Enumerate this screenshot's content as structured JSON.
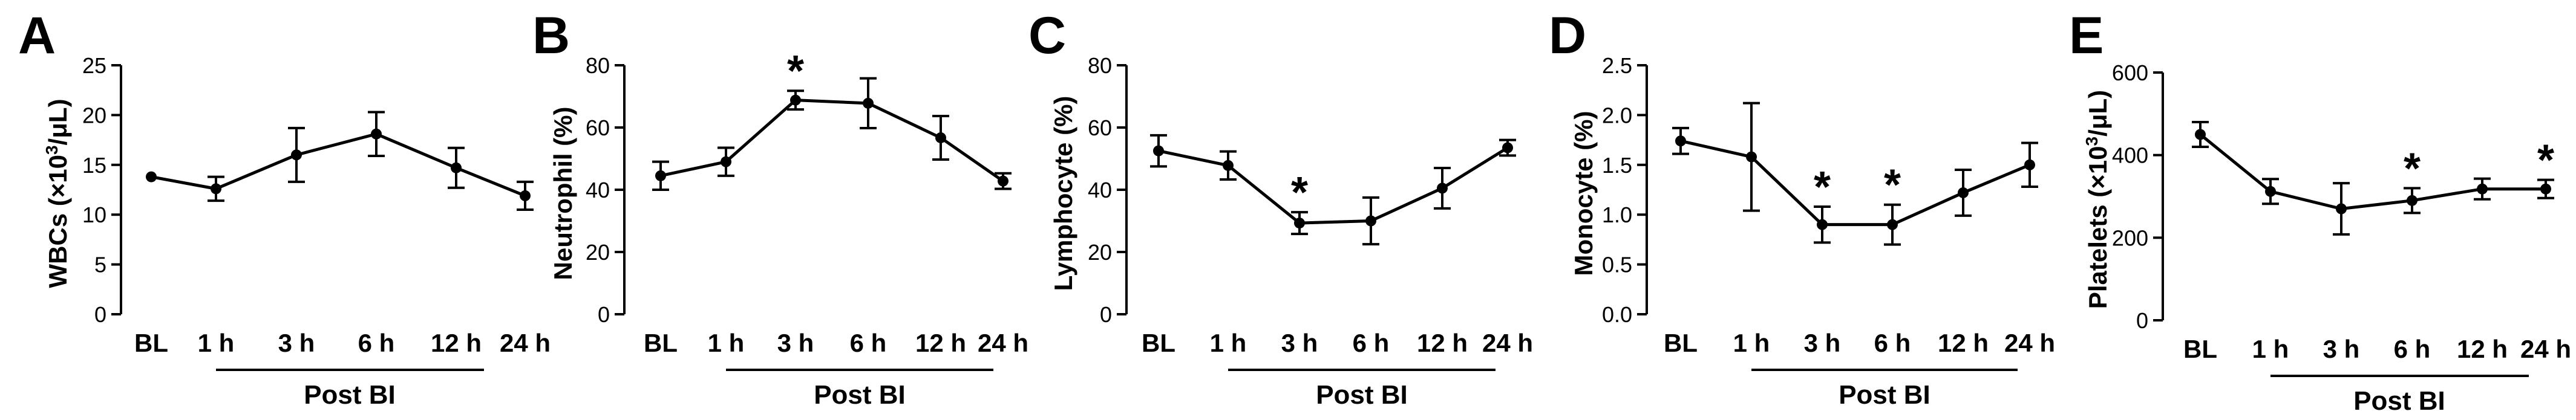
{
  "colors": {
    "line": "#000000",
    "text": "#000000",
    "background": "#ffffff"
  },
  "chart_data": [
    {
      "type": "line",
      "panel": "A",
      "ylabel": [
        "WBCs (×10",
        "3",
        "/μL)"
      ],
      "ylim": [
        0,
        25
      ],
      "yticks": [
        "0",
        "5",
        "10",
        "15",
        "20",
        "25"
      ],
      "categories": [
        "BL",
        "1 h",
        "3 h",
        "6 h",
        "12 h",
        "24 h"
      ],
      "values": [
        13.8,
        12.6,
        16.0,
        18.1,
        14.7,
        11.9
      ],
      "errors": [
        0,
        1.2,
        2.7,
        2.2,
        2.0,
        1.4
      ],
      "significant": [
        false,
        false,
        false,
        false,
        false,
        false
      ],
      "group_label": "Post BI",
      "star_symbol": "*"
    },
    {
      "type": "line",
      "panel": "B",
      "ylabel": [
        "Neutrophil (%)"
      ],
      "ylim": [
        0,
        80
      ],
      "yticks": [
        "0",
        "20",
        "40",
        "60",
        "80"
      ],
      "categories": [
        "BL",
        "1 h",
        "3 h",
        "6 h",
        "12 h",
        "24 h"
      ],
      "values": [
        44.5,
        49.0,
        68.8,
        67.8,
        56.7,
        42.8
      ],
      "errors": [
        4.5,
        4.5,
        3.0,
        8.0,
        7.0,
        2.5
      ],
      "significant": [
        false,
        false,
        true,
        false,
        false,
        false
      ],
      "group_label": "Post BI",
      "star_symbol": "*"
    },
    {
      "type": "line",
      "panel": "C",
      "ylabel": [
        "Lymphocyte (%)"
      ],
      "ylim": [
        0,
        80
      ],
      "yticks": [
        "0",
        "20",
        "40",
        "60",
        "80"
      ],
      "categories": [
        "BL",
        "1 h",
        "3 h",
        "6 h",
        "12 h",
        "24 h"
      ],
      "values": [
        52.5,
        47.8,
        29.3,
        30.0,
        40.5,
        53.5
      ],
      "errors": [
        5.0,
        4.5,
        3.5,
        7.5,
        6.5,
        2.5
      ],
      "significant": [
        false,
        false,
        true,
        false,
        false,
        false
      ],
      "group_label": "Post BI",
      "star_symbol": "*"
    },
    {
      "type": "line",
      "panel": "D",
      "ylabel": [
        "Monocyte (%)"
      ],
      "ylim": [
        0,
        2.5
      ],
      "yticks": [
        "0.0",
        "0.5",
        "1.0",
        "1.5",
        "2.0",
        "2.5"
      ],
      "categories": [
        "BL",
        "1 h",
        "3 h",
        "6 h",
        "12 h",
        "24 h"
      ],
      "values": [
        1.74,
        1.58,
        0.9,
        0.9,
        1.22,
        1.5
      ],
      "errors": [
        0.13,
        0.54,
        0.18,
        0.2,
        0.23,
        0.22
      ],
      "significant": [
        false,
        false,
        true,
        true,
        false,
        false
      ],
      "group_label": "Post BI",
      "star_symbol": "*"
    },
    {
      "type": "line",
      "panel": "E",
      "ylabel": [
        "Platelets (×10",
        "3",
        "/μL)"
      ],
      "ylim": [
        0,
        600
      ],
      "yticks": [
        "0",
        "200",
        "400",
        "600"
      ],
      "categories": [
        "BL",
        "1 h",
        "3 h",
        "6 h",
        "12 h",
        "24 h"
      ],
      "values": [
        450,
        312,
        270,
        290,
        318,
        318
      ],
      "errors": [
        30,
        30,
        62,
        30,
        25,
        22
      ],
      "significant": [
        false,
        false,
        false,
        true,
        false,
        true
      ],
      "group_label": "Post BI",
      "star_symbol": "*"
    }
  ]
}
